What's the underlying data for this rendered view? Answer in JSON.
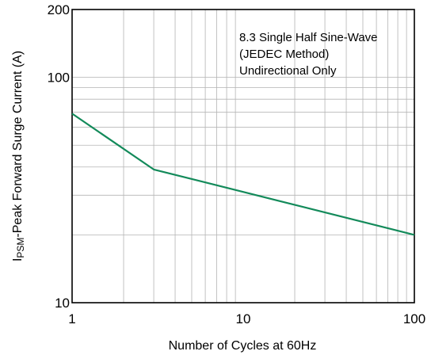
{
  "chart_data": {
    "type": "line",
    "x_scale": "log",
    "y_scale": "log",
    "xlim": [
      1,
      100
    ],
    "ylim": [
      10,
      200
    ],
    "x_ticks": [
      1,
      10,
      100
    ],
    "x_tick_labels": [
      "1",
      "10",
      "100"
    ],
    "y_ticks": [
      10,
      100,
      200
    ],
    "y_tick_labels": [
      "10",
      "100",
      "200"
    ],
    "grid": true,
    "xlabel": "Number of Cycles at 60Hz",
    "ylabel": {
      "prefix": "I",
      "subscript": "PSM",
      "rest": "-Peak Forward Surge Current (A)"
    },
    "annotation": [
      "8.3 Single Half Sine-Wave",
      "(JEDEC Method)",
      "Undirectional Only"
    ],
    "series": [
      {
        "color": "#138a5a",
        "x": [
          1,
          3,
          100
        ],
        "y": [
          69,
          39,
          20
        ]
      }
    ]
  }
}
